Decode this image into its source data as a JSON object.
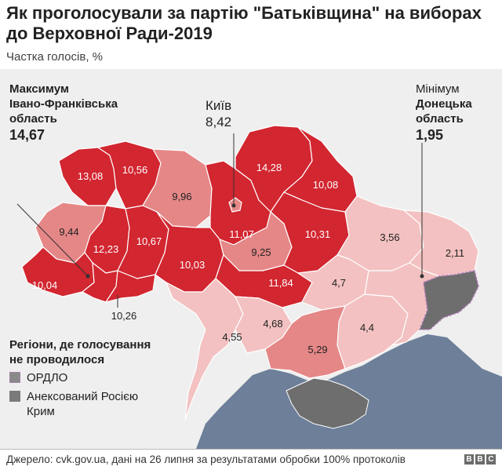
{
  "title": "Як проголосували за партію \"Батьківщина\" на виборах до Верховної Ради-2019",
  "subtitle": "Частка голосів, %",
  "max": {
    "label": "Максимум",
    "region": "Івано-Франківська область",
    "value": "14,67"
  },
  "min": {
    "label": "Мінімум",
    "region": "Донецька область",
    "value": "1,95"
  },
  "kyiv": {
    "name": "Київ",
    "value": "8,42"
  },
  "regions": [
    {
      "id": "volyn",
      "value": "13,08"
    },
    {
      "id": "rivne",
      "value": "10,56"
    },
    {
      "id": "zhytomyr",
      "value": "9,96"
    },
    {
      "id": "kyiv-oblast",
      "value": "11,07"
    },
    {
      "id": "chernihiv",
      "value": "14,28"
    },
    {
      "id": "sumy",
      "value": "10,08"
    },
    {
      "id": "lviv",
      "value": "9,44"
    },
    {
      "id": "ternopil",
      "value": "12,23"
    },
    {
      "id": "khmelnytskyi",
      "value": "10,67"
    },
    {
      "id": "vinnytsia",
      "value": "10,03"
    },
    {
      "id": "cherkasy",
      "value": "9,25"
    },
    {
      "id": "poltava",
      "value": "10,31"
    },
    {
      "id": "kharkiv",
      "value": "3,56"
    },
    {
      "id": "luhansk",
      "value": "2,11"
    },
    {
      "id": "zakarpattia",
      "value": "10,04"
    },
    {
      "id": "chernivtsi",
      "value": "10,26"
    },
    {
      "id": "kirovohrad",
      "value": "11,84"
    },
    {
      "id": "dnipro",
      "value": "4,7"
    },
    {
      "id": "odesa",
      "value": "4,55"
    },
    {
      "id": "mykolaiv",
      "value": "4,68"
    },
    {
      "id": "zaporizhzhia",
      "value": "4,4"
    },
    {
      "id": "kherson",
      "value": "5,29"
    }
  ],
  "legend": {
    "title": "Регіони, де голосування не проводилося",
    "items": [
      {
        "label": "ОРДЛО",
        "color": "#8a8a8a"
      },
      {
        "label": "Анексований Росією Крим",
        "color": "#7a7a7a"
      }
    ]
  },
  "colors": {
    "dark": "#d22630",
    "medium": "#e58787",
    "light": "#f3c1c1",
    "sea": "#6d7f99",
    "neighbor": "#efefef",
    "occupied": "#6e6e6e"
  },
  "footer": {
    "source": "Джерело: cvk.gov.ua, дані на 26 липня за результатами обробки 100% протоколів",
    "brand": [
      "B",
      "B",
      "C"
    ]
  }
}
